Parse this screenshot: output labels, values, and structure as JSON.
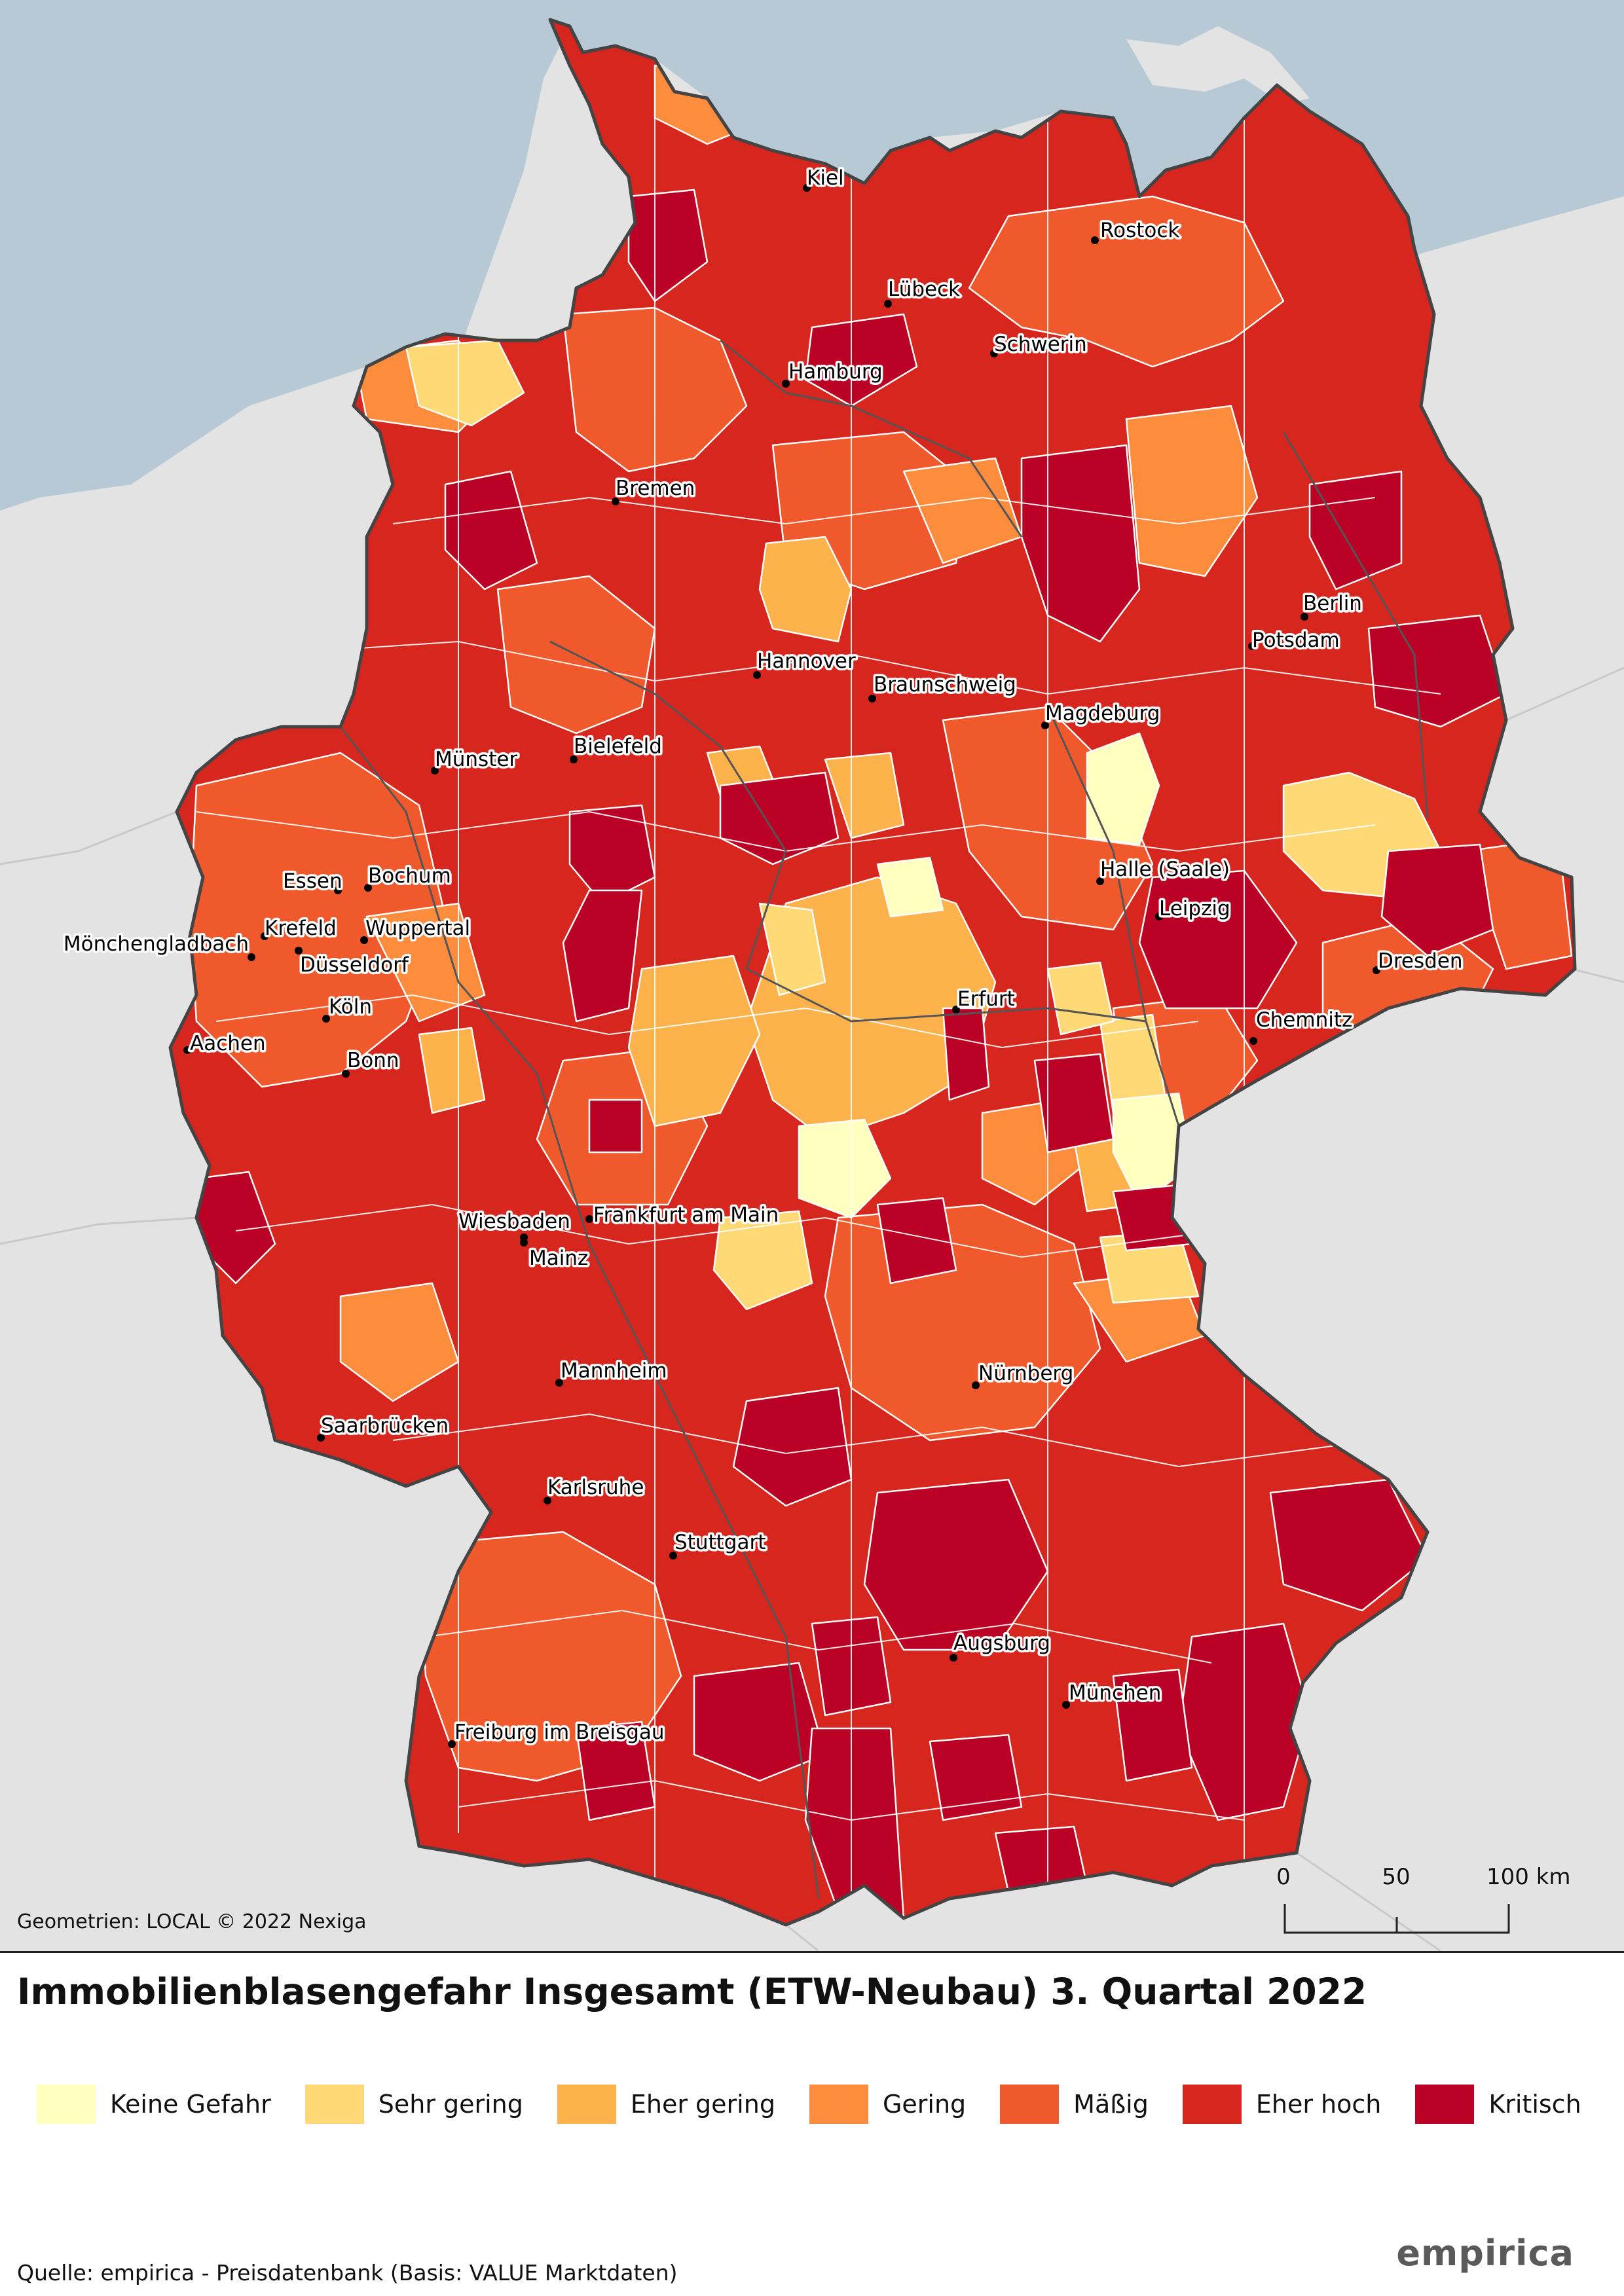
{
  "title": "Immobilienblasengefahr Insgesamt (ETW-Neubau) 3. Quartal 2022",
  "credit": "Geometrien: LOCAL © 2022 Nexiga",
  "source": "Quelle: empirica - Preisdatenbank (Basis: VALUE Marktdaten)",
  "brand": "empirica",
  "scale_bar": {
    "labels": [
      "0",
      "50",
      "100 km"
    ]
  },
  "colors": {
    "sea": "#b8c9d6",
    "neighbors": "#e3e3e3",
    "keine_gefahr": "#ffffbf",
    "sehr_gering": "#fed976",
    "eher_gering": "#feb24c",
    "gering": "#fd8d3c",
    "maessig": "#f0592b",
    "eher_hoch": "#d7261e",
    "kritisch": "#bb0026"
  },
  "legend": [
    {
      "label": "Keine Gefahr",
      "color": "#ffffbf"
    },
    {
      "label": "Sehr gering",
      "color": "#fed976"
    },
    {
      "label": "Eher gering",
      "color": "#feb24c"
    },
    {
      "label": "Gering",
      "color": "#fd8d3c"
    },
    {
      "label": "Mäßig",
      "color": "#f0592b"
    },
    {
      "label": "Eher hoch",
      "color": "#d7261e"
    },
    {
      "label": "Kritisch",
      "color": "#bb0026"
    }
  ],
  "cities": {
    "kiel": "Kiel",
    "rostock": "Rostock",
    "luebeck": "Lübeck",
    "schwerin": "Schwerin",
    "hamburg": "Hamburg",
    "bremen": "Bremen",
    "berlin": "Berlin",
    "potsdam": "Potsdam",
    "hannover": "Hannover",
    "braunschweig": "Braunschweig",
    "magdeburg": "Magdeburg",
    "muenster": "Münster",
    "bielefeld": "Bielefeld",
    "essen": "Essen",
    "bochum": "Bochum",
    "halle": "Halle (Saale)",
    "leipzig": "Leipzig",
    "krefeld": "Krefeld",
    "wuppertal": "Wuppertal",
    "moenchengladbach": "Mönchengladbach",
    "duesseldorf": "Düsseldorf",
    "dresden": "Dresden",
    "koeln": "Köln",
    "erfurt": "Erfurt",
    "chemnitz": "Chemnitz",
    "aachen": "Aachen",
    "bonn": "Bonn",
    "wiesbaden": "Wiesbaden",
    "frankfurt": "Frankfurt am Main",
    "mainz": "Mainz",
    "mannheim": "Mannheim",
    "nuernberg": "Nürnberg",
    "saarbruecken": "Saarbrücken",
    "karlsruhe": "Karlsruhe",
    "stuttgart": "Stuttgart",
    "augsburg": "Augsburg",
    "muenchen": "München",
    "freiburg": "Freiburg im Breisgau"
  }
}
